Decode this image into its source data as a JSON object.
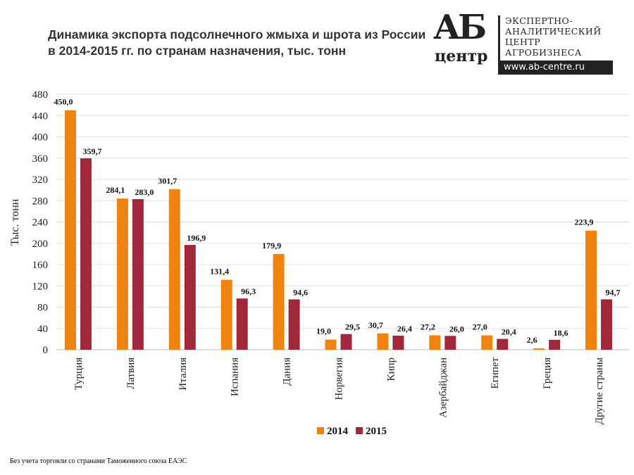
{
  "title": "Динамика экспорта подсолнечного жмыха и шрота из России в 2014-2015 гг. по странам назначения, тыс. тонн",
  "logo": {
    "mark": "АБ",
    "sub": "центр",
    "lines": [
      "ЭКСПЕРТНО-",
      "АНАЛИТИЧЕСКИЙ",
      "ЦЕНТР",
      "АГРОБИЗНЕСА"
    ],
    "url": "www.ab-centre.ru"
  },
  "footnote": "Без учета торговли со странами Таможенного союза ЕАЭС",
  "chart_data": {
    "type": "bar",
    "title": "",
    "xlabel": "",
    "ylabel": "Тыс. тонн",
    "ylim": [
      0,
      480
    ],
    "yticks": [
      0,
      40,
      80,
      120,
      160,
      200,
      240,
      280,
      320,
      360,
      400,
      440,
      480
    ],
    "grid": true,
    "legend": "bottom",
    "categories": [
      "Турция",
      "Латвия",
      "Италия",
      "Испания",
      "Дания",
      "Норвегия",
      "Кипр",
      "Азербайджан",
      "Египет",
      "Греция",
      "Другие страны"
    ],
    "series": [
      {
        "name": "2014",
        "color": "#F0820F",
        "values": [
          450.0,
          284.1,
          301.7,
          131.4,
          179.9,
          19.0,
          30.7,
          27.2,
          27.0,
          2.6,
          223.9
        ],
        "labels": [
          "450,0",
          "284,1",
          "301,7",
          "131,4",
          "179,9",
          "19,0",
          "30,7",
          "27,2",
          "27,0",
          "2,6",
          "223,9"
        ]
      },
      {
        "name": "2015",
        "color": "#A0283A",
        "values": [
          359.7,
          283.0,
          196.9,
          96.3,
          94.6,
          29.5,
          26.4,
          26.0,
          20.4,
          18.6,
          94.7
        ],
        "labels": [
          "359,7",
          "283,0",
          "196,9",
          "96,3",
          "94,6",
          "29,5",
          "26,4",
          "26,0",
          "20,4",
          "18,6",
          "94,7"
        ]
      }
    ]
  }
}
